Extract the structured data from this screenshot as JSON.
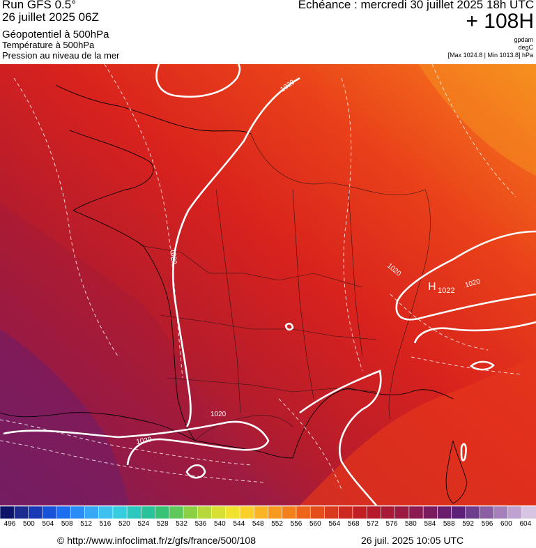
{
  "header": {
    "run": "Run GFS 0.5°",
    "run_date": "26 juillet 2025 06Z",
    "layer1": "Géopotentiel à 500hPa",
    "layer2": "Température à 500hPa",
    "layer3": "Pression au niveau de la mer",
    "echeance": "Echéance : mercredi 30 juillet 2025 18h UTC",
    "lead": "+ 108H",
    "unit1": "gpdam",
    "unit2": "degC",
    "unit3": "[Max 1024.8 | Min 1013.8] hPa"
  },
  "map": {
    "isobar_labels": [
      "1020",
      "1020",
      "1020",
      "1020",
      "1020",
      "1020"
    ],
    "high_symbol": "H",
    "high_value": "1022"
  },
  "scale": {
    "labels": [
      "496",
      "500",
      "504",
      "508",
      "512",
      "516",
      "520",
      "524",
      "528",
      "532",
      "536",
      "540",
      "544",
      "548",
      "552",
      "556",
      "560",
      "564",
      "568",
      "572",
      "576",
      "580",
      "584",
      "588",
      "592",
      "596",
      "600",
      "604"
    ],
    "colors": [
      "#0b1468",
      "#1c2c8e",
      "#1a3ab5",
      "#1752d8",
      "#1d6ef0",
      "#2a8cf6",
      "#37a8f5",
      "#3fc1f0",
      "#36cde0",
      "#2bc8bf",
      "#2ac29a",
      "#38c275",
      "#5ec85a",
      "#8cd046",
      "#b5d93a",
      "#d7e033",
      "#f1e22d",
      "#fbd029",
      "#fbb524",
      "#f89a20",
      "#f47f1d",
      "#ef641b",
      "#e54d1b",
      "#d93a1d",
      "#cc2a20",
      "#c21f24",
      "#b71b2b",
      "#a81a36",
      "#9a1a44",
      "#8b1b52",
      "#7b1c60",
      "#6a1e6e",
      "#5c2078",
      "#6e3d8c",
      "#8a5fa4",
      "#a580bb",
      "#bfa2d0",
      "#d6c4e2"
    ]
  },
  "footer": {
    "credit": "© http://www.infoclimat.fr/z/gfs/france/500/108",
    "timestamp": "26 juil. 2025 10:05 UTC"
  }
}
